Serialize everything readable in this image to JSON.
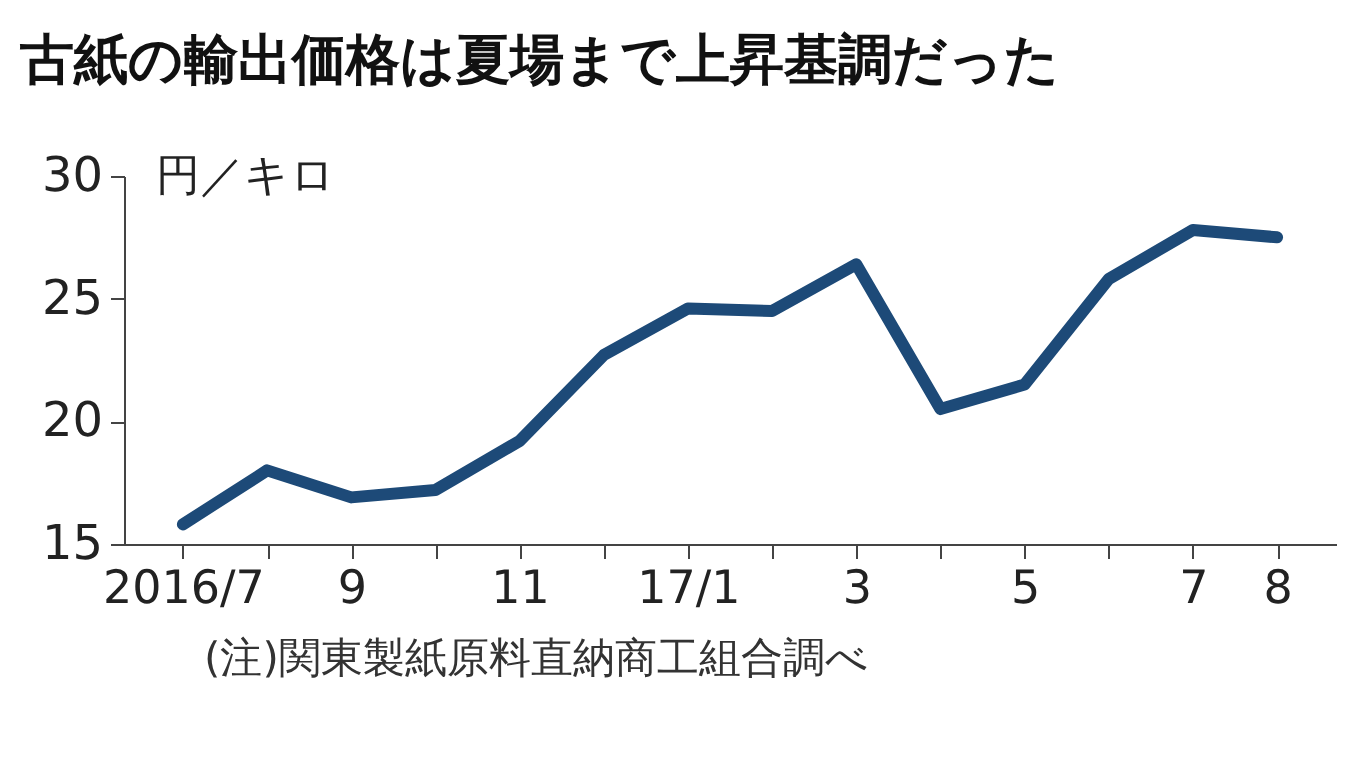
{
  "chart_data": {
    "type": "line",
    "title": "古紙の輸出価格は夏場まで上昇基調だった",
    "ylabel": "円／キロ",
    "categories": [
      "2016/7",
      null,
      "9",
      null,
      "11",
      null,
      "17/1",
      null,
      "3",
      null,
      "5",
      null,
      "7",
      "8"
    ],
    "series": [
      {
        "color": "#1d4a78",
        "values": [
          15.8,
          18.0,
          16.9,
          17.2,
          19.2,
          22.7,
          24.6,
          24.5,
          26.4,
          20.5,
          21.5,
          25.8,
          27.8,
          27.5
        ]
      }
    ],
    "ylim": [
      15,
      30
    ],
    "yticks": [
      15,
      20,
      25,
      30
    ],
    "grid": false,
    "marker": "none",
    "line_style": "solid",
    "annotations": [
      "(注)関東製紙原料直納商工組合調べ"
    ]
  }
}
